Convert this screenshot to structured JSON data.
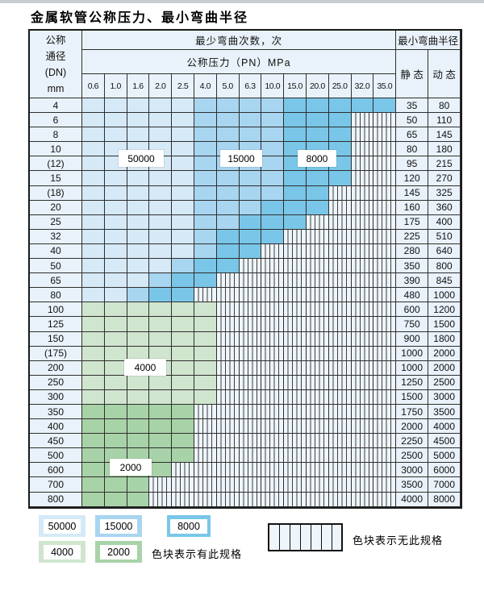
{
  "page": {
    "title": "金属软管公称压力、最小弯曲半径"
  },
  "table": {
    "header": {
      "dn_lines": [
        "公称",
        "通径",
        "(DN)",
        "mm"
      ],
      "bend_count": "最少弯曲次数，次",
      "pressure": "公称压力（PN）MPa",
      "radius": "最小弯曲半径",
      "static": "静 态",
      "dynamic": "动 态",
      "pressures": [
        "0.6",
        "1.0",
        "1.6",
        "2.0",
        "2.5",
        "4.0",
        "5.0",
        "6.3",
        "10.0",
        "15.0",
        "20.0",
        "25.0",
        "32.0",
        "35.0"
      ]
    },
    "cell_code_meaning": {
      "L": "50000次-浅蓝",
      "M": "15000次-中蓝",
      "D": "8000次-深蓝",
      "G": "4000次-浅绿",
      "E": "2000次-绿",
      "S": "无此规格-条纹"
    },
    "rows": [
      {
        "dn": "4",
        "cells": "LLLLLMMMMDDDDD",
        "static": "35",
        "dynamic": "80"
      },
      {
        "dn": "6",
        "cells": "LLLLLMMMMDDDSS",
        "static": "50",
        "dynamic": "110"
      },
      {
        "dn": "8",
        "cells": "LLLLLMMMMDDDSS",
        "static": "65",
        "dynamic": "145"
      },
      {
        "dn": "10",
        "cells": "LLLLLMMMMDDDSS",
        "static": "80",
        "dynamic": "180"
      },
      {
        "dn": "(12)",
        "cells": "LLLLLMMMMDDDSS",
        "static": "95",
        "dynamic": "215"
      },
      {
        "dn": "15",
        "cells": "LLLLLMMMMDDDSS",
        "static": "120",
        "dynamic": "270"
      },
      {
        "dn": "(18)",
        "cells": "LLLLLMMMMDDSSS",
        "static": "145",
        "dynamic": "325"
      },
      {
        "dn": "20",
        "cells": "LLLLLMMMDDDSSS",
        "static": "160",
        "dynamic": "360"
      },
      {
        "dn": "25",
        "cells": "LLLLLMMDDDSSSS",
        "static": "175",
        "dynamic": "400"
      },
      {
        "dn": "32",
        "cells": "LLLLLMDDDSSSSS",
        "static": "225",
        "dynamic": "510"
      },
      {
        "dn": "40",
        "cells": "LLLLLMDDSSSSSS",
        "static": "280",
        "dynamic": "640"
      },
      {
        "dn": "50",
        "cells": "LLLLMDDSSSSSSS",
        "static": "350",
        "dynamic": "800"
      },
      {
        "dn": "65",
        "cells": "LLLMDDSSSSSSSS",
        "static": "390",
        "dynamic": "845"
      },
      {
        "dn": "80",
        "cells": "LLMDDSSSSSSSSS",
        "static": "480",
        "dynamic": "1000"
      },
      {
        "dn": "100",
        "cells": "GGGGGGSSSSSSSS",
        "static": "600",
        "dynamic": "1200"
      },
      {
        "dn": "125",
        "cells": "GGGGGGSSSSSSSS",
        "static": "750",
        "dynamic": "1500"
      },
      {
        "dn": "150",
        "cells": "GGGGGGSSSSSSSS",
        "static": "900",
        "dynamic": "1800"
      },
      {
        "dn": "(175)",
        "cells": "GGGGGGSSSSSSSS",
        "static": "1000",
        "dynamic": "2000"
      },
      {
        "dn": "200",
        "cells": "GGGGGGSSSSSSSS",
        "static": "1000",
        "dynamic": "2000"
      },
      {
        "dn": "250",
        "cells": "GGGGGGSSSSSSSS",
        "static": "1250",
        "dynamic": "2500"
      },
      {
        "dn": "300",
        "cells": "GGGGGGSSSSSSSS",
        "static": "1500",
        "dynamic": "3000"
      },
      {
        "dn": "350",
        "cells": "EEEEESSSSSSSSS",
        "static": "1750",
        "dynamic": "3500"
      },
      {
        "dn": "400",
        "cells": "EEEEESSSSSSSSS",
        "static": "2000",
        "dynamic": "4000"
      },
      {
        "dn": "450",
        "cells": "EEEEESSSSSSSSS",
        "static": "2250",
        "dynamic": "4500"
      },
      {
        "dn": "500",
        "cells": "EEEEESSSSSSSSS",
        "static": "2500",
        "dynamic": "5000"
      },
      {
        "dn": "600",
        "cells": "EEEESSSSSSSSSS",
        "static": "3000",
        "dynamic": "6000"
      },
      {
        "dn": "700",
        "cells": "EEESSSSSSSSSSS",
        "static": "3500",
        "dynamic": "7000"
      },
      {
        "dn": "800",
        "cells": "EEESSSSSSSSSSS",
        "static": "4000",
        "dynamic": "8000"
      }
    ]
  },
  "overlays": {
    "b50000": "50000",
    "b15000": "15000",
    "b8000": "8000",
    "b4000": "4000",
    "b2000": "2000"
  },
  "legend": {
    "items": [
      {
        "value": "50000",
        "color": "#d5e9f7"
      },
      {
        "value": "15000",
        "color": "#a8d5f0"
      },
      {
        "value": "8000",
        "color": "#79c6e8"
      },
      {
        "value": "4000",
        "color": "#d0e5ce"
      },
      {
        "value": "2000",
        "color": "#a8d3a8"
      }
    ],
    "has_spec": "色块表示有此规格",
    "no_spec": "色块表示无此规格"
  },
  "colors": {
    "light_blue": "#d5e9f7",
    "medium_blue": "#a8d5f0",
    "dark_blue": "#79c6e8",
    "light_green": "#d0e5ce",
    "medium_green": "#a8d3a8",
    "header_bg": "#e9f2fa",
    "grid_line": "#2e2e2e"
  }
}
